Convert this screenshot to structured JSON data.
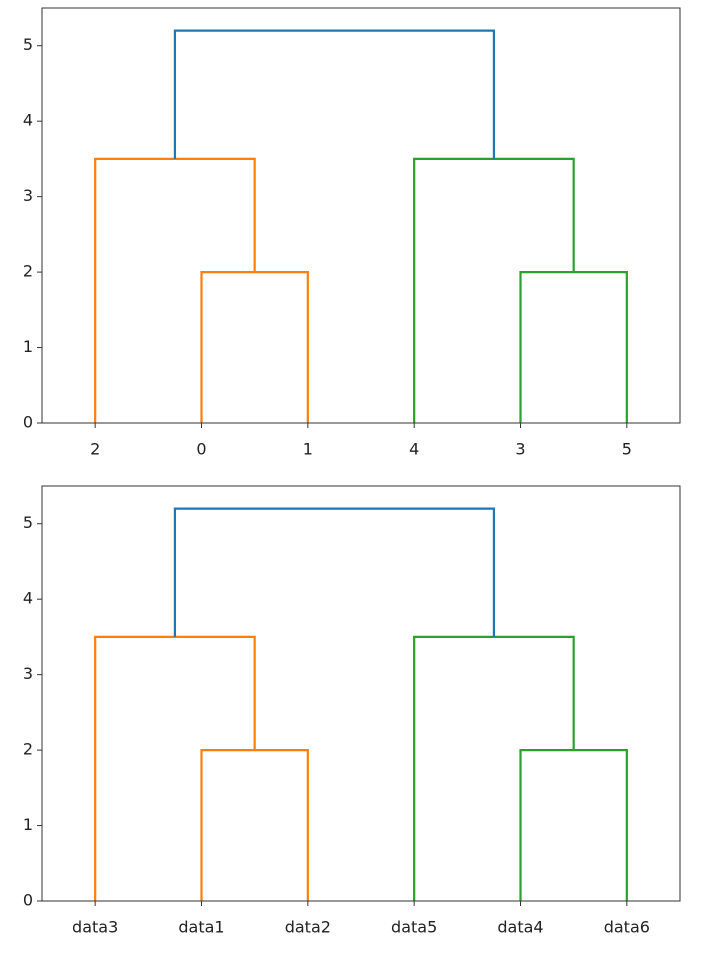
{
  "chart_data": [
    {
      "type": "dendrogram",
      "categories": [
        "2",
        "0",
        "1",
        "4",
        "3",
        "5"
      ],
      "xlim": [
        -0.5,
        5.5
      ],
      "ylim": [
        0,
        5.5
      ],
      "yticks": [
        0,
        1,
        2,
        3,
        4,
        5
      ],
      "links": [
        {
          "color": "#ff7f0e",
          "x": [
            1,
            1,
            2,
            2
          ],
          "y": [
            0,
            2,
            2,
            0
          ]
        },
        {
          "color": "#ff7f0e",
          "x": [
            0,
            0,
            1.5,
            1.5
          ],
          "y": [
            0,
            3.5,
            3.5,
            2
          ]
        },
        {
          "color": "#2ca02c",
          "x": [
            4,
            4,
            5,
            5
          ],
          "y": [
            0,
            2,
            2,
            0
          ]
        },
        {
          "color": "#2ca02c",
          "x": [
            3,
            3,
            4.5,
            4.5
          ],
          "y": [
            0,
            3.5,
            3.5,
            2
          ]
        },
        {
          "color": "#1f77b4",
          "x": [
            0.75,
            0.75,
            3.75,
            3.75
          ],
          "y": [
            3.5,
            5.2,
            5.2,
            3.5
          ]
        }
      ]
    },
    {
      "type": "dendrogram",
      "categories": [
        "data3",
        "data1",
        "data2",
        "data5",
        "data4",
        "data6"
      ],
      "xlim": [
        -0.5,
        5.5
      ],
      "ylim": [
        0,
        5.5
      ],
      "yticks": [
        0,
        1,
        2,
        3,
        4,
        5
      ],
      "links": [
        {
          "color": "#ff7f0e",
          "x": [
            1,
            1,
            2,
            2
          ],
          "y": [
            0,
            2,
            2,
            0
          ]
        },
        {
          "color": "#ff7f0e",
          "x": [
            0,
            0,
            1.5,
            1.5
          ],
          "y": [
            0,
            3.5,
            3.5,
            2
          ]
        },
        {
          "color": "#2ca02c",
          "x": [
            4,
            4,
            5,
            5
          ],
          "y": [
            0,
            2,
            2,
            0
          ]
        },
        {
          "color": "#2ca02c",
          "x": [
            3,
            3,
            4.5,
            4.5
          ],
          "y": [
            0,
            3.5,
            3.5,
            2
          ]
        },
        {
          "color": "#1f77b4",
          "x": [
            0.75,
            0.75,
            3.75,
            3.75
          ],
          "y": [
            3.5,
            5.2,
            5.2,
            3.5
          ]
        }
      ]
    }
  ]
}
